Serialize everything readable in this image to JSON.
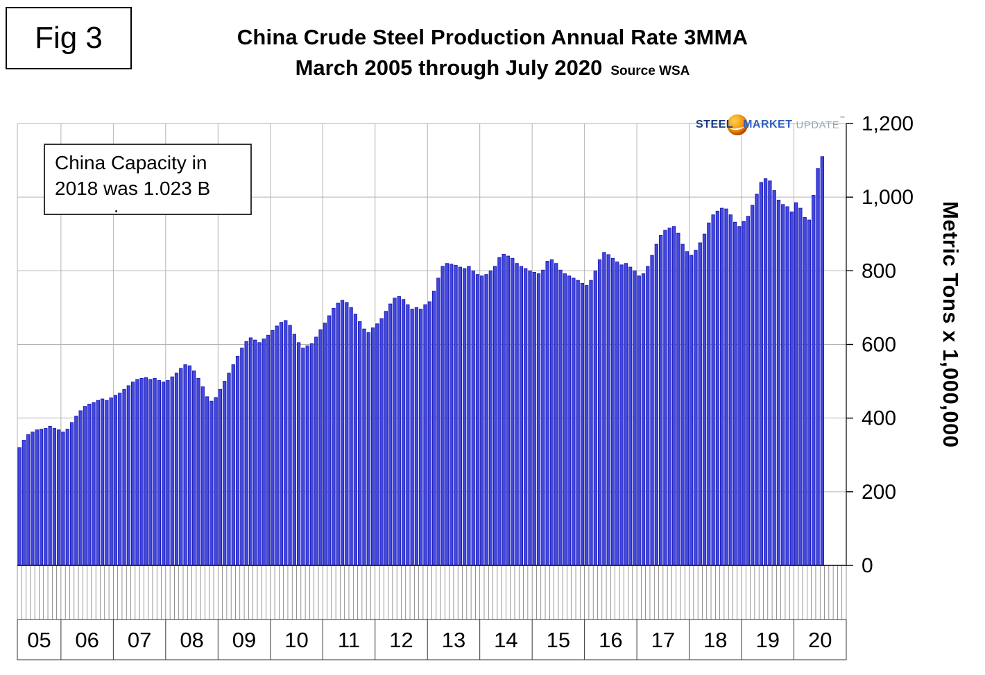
{
  "fig_label": "Fig 3",
  "header": {
    "title_line1": "China Crude Steel Production Annual Rate 3MMA",
    "title_line2": "March 2005 through July 2020",
    "source": "Source WSA"
  },
  "annotation": {
    "line1": "China Capacity in",
    "line2": "2018 was 1.023 B",
    "dot": "."
  },
  "logo": {
    "word1": "STEEL",
    "word2": "MARKET",
    "word3": "UPDATE",
    "tm": "™"
  },
  "y_axis_title": "Metric Tons x 1,000,000",
  "chart_data": {
    "type": "bar",
    "title": "China Crude Steel Production Annual Rate 3MMA",
    "subtitle": "March 2005 through July 2020",
    "source": "Source WSA",
    "ylabel": "Metric Tons x 1,000,000",
    "ylim": [
      0,
      1200
    ],
    "yticks": [
      0,
      200,
      400,
      600,
      800,
      1000,
      1200
    ],
    "ytick_labels": [
      "0",
      "200",
      "400",
      "600",
      "800",
      "1,000",
      "1,200"
    ],
    "bar_color": "#4348e0",
    "bar_edge": "#1b1bb3",
    "grid_color": "#b3b3b3",
    "start": "2005-03",
    "end": "2020-07",
    "years": [
      {
        "label": "05",
        "months": 10,
        "slots": 10
      },
      {
        "label": "06",
        "months": 12,
        "slots": 12
      },
      {
        "label": "07",
        "months": 12,
        "slots": 12
      },
      {
        "label": "08",
        "months": 12,
        "slots": 12
      },
      {
        "label": "09",
        "months": 12,
        "slots": 12
      },
      {
        "label": "10",
        "months": 12,
        "slots": 12
      },
      {
        "label": "11",
        "months": 12,
        "slots": 12
      },
      {
        "label": "12",
        "months": 12,
        "slots": 12
      },
      {
        "label": "13",
        "months": 12,
        "slots": 12
      },
      {
        "label": "14",
        "months": 12,
        "slots": 12
      },
      {
        "label": "15",
        "months": 12,
        "slots": 12
      },
      {
        "label": "16",
        "months": 12,
        "slots": 12
      },
      {
        "label": "17",
        "months": 12,
        "slots": 12
      },
      {
        "label": "18",
        "months": 12,
        "slots": 12
      },
      {
        "label": "19",
        "months": 12,
        "slots": 12
      },
      {
        "label": "20",
        "months": 7,
        "slots": 12
      }
    ],
    "values": [
      320,
      340,
      355,
      362,
      368,
      370,
      372,
      378,
      372,
      368,
      362,
      370,
      388,
      405,
      420,
      432,
      438,
      442,
      448,
      452,
      448,
      455,
      462,
      468,
      478,
      488,
      498,
      505,
      508,
      510,
      505,
      508,
      502,
      498,
      502,
      512,
      522,
      535,
      545,
      542,
      528,
      508,
      485,
      458,
      446,
      456,
      478,
      500,
      522,
      545,
      568,
      590,
      608,
      618,
      612,
      605,
      615,
      625,
      638,
      650,
      660,
      665,
      652,
      628,
      605,
      590,
      596,
      602,
      620,
      640,
      658,
      678,
      698,
      712,
      720,
      714,
      700,
      682,
      662,
      642,
      632,
      645,
      656,
      670,
      690,
      710,
      726,
      730,
      722,
      708,
      696,
      700,
      696,
      708,
      716,
      745,
      780,
      812,
      820,
      818,
      815,
      810,
      806,
      812,
      800,
      790,
      786,
      790,
      800,
      812,
      836,
      845,
      840,
      834,
      820,
      812,
      806,
      800,
      796,
      792,
      802,
      826,
      830,
      820,
      802,
      792,
      786,
      780,
      774,
      766,
      760,
      774,
      800,
      830,
      850,
      844,
      834,
      824,
      816,
      820,
      810,
      800,
      786,
      792,
      812,
      842,
      872,
      896,
      910,
      916,
      920,
      902,
      872,
      852,
      842,
      856,
      876,
      900,
      930,
      952,
      962,
      970,
      968,
      952,
      932,
      920,
      934,
      948,
      978,
      1008,
      1040,
      1050,
      1044,
      1018,
      992,
      980,
      974,
      960,
      985,
      970,
      945,
      938,
      1005,
      1078,
      1110
    ]
  }
}
